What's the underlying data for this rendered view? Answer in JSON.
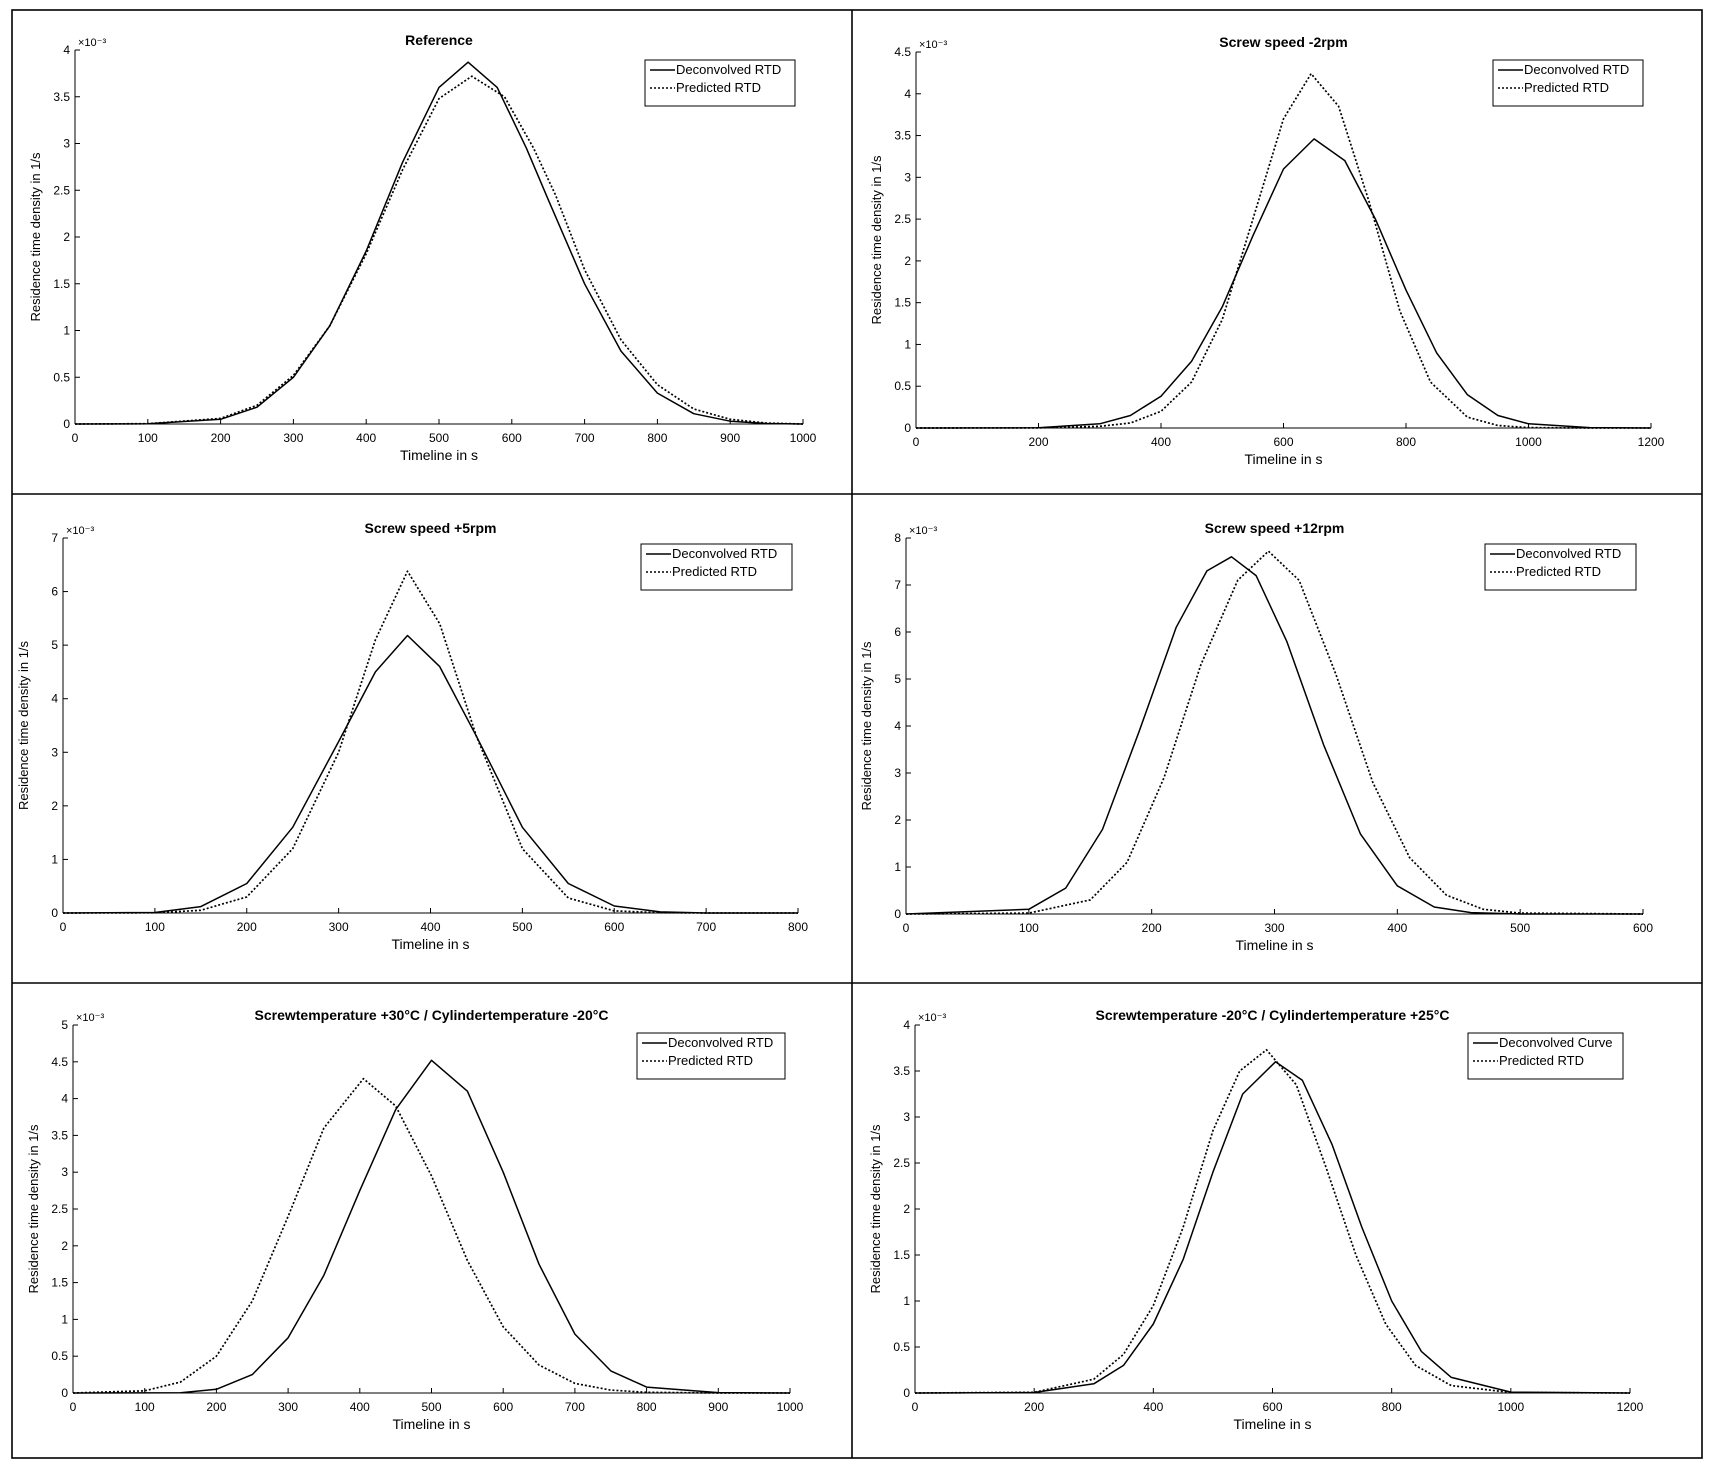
{
  "chart_data": [
    {
      "type": "line",
      "title": "Reference",
      "xlabel": "Timeline in s",
      "ylabel": "Residence time density in 1/s",
      "yscale_label": "×10⁻³",
      "xlim": [
        0,
        1000
      ],
      "ylim": [
        0,
        4
      ],
      "xticks": [
        0,
        100,
        200,
        300,
        400,
        500,
        600,
        700,
        800,
        900,
        1000
      ],
      "yticks": [
        0,
        0.5,
        1,
        1.5,
        2,
        2.5,
        3,
        3.5,
        4
      ],
      "legend_position": "top-right",
      "grid": false,
      "series": [
        {
          "name": "Deconvolved RTD",
          "style": "solid",
          "x": [
            0,
            100,
            200,
            250,
            300,
            350,
            400,
            450,
            500,
            540,
            580,
            620,
            650,
            700,
            750,
            800,
            850,
            900,
            950,
            1000
          ],
          "y": [
            0,
            0.002,
            0.05,
            0.18,
            0.5,
            1.05,
            1.85,
            2.8,
            3.6,
            3.87,
            3.6,
            2.95,
            2.4,
            1.5,
            0.78,
            0.33,
            0.11,
            0.03,
            0.005,
            0
          ]
        },
        {
          "name": "Predicted RTD",
          "style": "dotted",
          "x": [
            0,
            100,
            200,
            250,
            300,
            350,
            400,
            450,
            500,
            545,
            590,
            630,
            660,
            700,
            750,
            800,
            850,
            900,
            950,
            1000
          ],
          "y": [
            0,
            0.003,
            0.06,
            0.2,
            0.52,
            1.05,
            1.82,
            2.72,
            3.48,
            3.72,
            3.5,
            2.95,
            2.45,
            1.65,
            0.9,
            0.42,
            0.16,
            0.05,
            0.01,
            0
          ]
        }
      ]
    },
    {
      "type": "line",
      "title": "Screw speed -2rpm",
      "xlabel": "Timeline in s",
      "ylabel": "Residence time density in 1/s",
      "yscale_label": "×10⁻³",
      "xlim": [
        0,
        1200
      ],
      "ylim": [
        0,
        4.5
      ],
      "xticks": [
        0,
        200,
        400,
        600,
        800,
        1000,
        1200
      ],
      "yticks": [
        0,
        0.5,
        1,
        1.5,
        2,
        2.5,
        3,
        3.5,
        4,
        4.5
      ],
      "legend_position": "top-right",
      "grid": false,
      "series": [
        {
          "name": "Deconvolved RTD",
          "style": "solid",
          "x": [
            0,
            200,
            300,
            350,
            400,
            450,
            500,
            550,
            600,
            650,
            700,
            750,
            800,
            850,
            900,
            950,
            1000,
            1100,
            1200
          ],
          "y": [
            0,
            0.002,
            0.05,
            0.15,
            0.38,
            0.8,
            1.45,
            2.3,
            3.1,
            3.46,
            3.2,
            2.5,
            1.65,
            0.9,
            0.4,
            0.15,
            0.05,
            0.005,
            0
          ]
        },
        {
          "name": "Predicted RTD",
          "style": "dotted",
          "x": [
            0,
            200,
            300,
            350,
            400,
            450,
            500,
            550,
            600,
            645,
            690,
            740,
            790,
            840,
            900,
            950,
            1000,
            1100,
            1200
          ],
          "y": [
            0,
            0.001,
            0.02,
            0.06,
            0.2,
            0.55,
            1.3,
            2.5,
            3.7,
            4.24,
            3.85,
            2.7,
            1.4,
            0.55,
            0.13,
            0.03,
            0.005,
            0,
            0
          ]
        }
      ]
    },
    {
      "type": "line",
      "title": "Screw speed +5rpm",
      "xlabel": "Timeline in s",
      "ylabel": "Residence time density in 1/s",
      "yscale_label": "×10⁻³",
      "xlim": [
        0,
        800
      ],
      "ylim": [
        0,
        7
      ],
      "xticks": [
        0,
        100,
        200,
        300,
        400,
        500,
        600,
        700,
        800
      ],
      "yticks": [
        0,
        1,
        2,
        3,
        4,
        5,
        6,
        7
      ],
      "legend_position": "top-right",
      "grid": false,
      "series": [
        {
          "name": "Deconvolved RTD",
          "style": "solid",
          "x": [
            0,
            100,
            150,
            200,
            250,
            300,
            340,
            375,
            410,
            450,
            500,
            550,
            600,
            650,
            700,
            800
          ],
          "y": [
            0,
            0.01,
            0.12,
            0.55,
            1.6,
            3.2,
            4.5,
            5.18,
            4.6,
            3.3,
            1.6,
            0.55,
            0.13,
            0.02,
            0,
            0
          ]
        },
        {
          "name": "Predicted RTD",
          "style": "dotted",
          "x": [
            0,
            100,
            150,
            200,
            250,
            300,
            340,
            375,
            410,
            450,
            500,
            550,
            600,
            650,
            700,
            800
          ],
          "y": [
            0,
            0.003,
            0.05,
            0.3,
            1.2,
            3.0,
            5.1,
            6.38,
            5.4,
            3.3,
            1.2,
            0.28,
            0.04,
            0.005,
            0,
            0
          ]
        }
      ]
    },
    {
      "type": "line",
      "title": "Screw speed +12rpm",
      "xlabel": "Timeline in s",
      "ylabel": "Residence time density in 1/s",
      "yscale_label": "×10⁻³",
      "xlim": [
        0,
        600
      ],
      "ylim": [
        0,
        8
      ],
      "xticks": [
        0,
        100,
        200,
        300,
        400,
        500,
        600
      ],
      "yticks": [
        0,
        1,
        2,
        3,
        4,
        5,
        6,
        7,
        8
      ],
      "legend_position": "top-right",
      "grid": false,
      "series": [
        {
          "name": "Deconvolved RTD",
          "style": "solid",
          "x": [
            0,
            100,
            130,
            160,
            190,
            220,
            245,
            265,
            285,
            310,
            340,
            370,
            400,
            430,
            460,
            500,
            600
          ],
          "y": [
            0,
            0.1,
            0.55,
            1.8,
            3.9,
            6.1,
            7.3,
            7.6,
            7.2,
            5.8,
            3.6,
            1.7,
            0.6,
            0.15,
            0.03,
            0,
            0
          ]
        },
        {
          "name": "Predicted RTD",
          "style": "dotted",
          "x": [
            0,
            100,
            150,
            180,
            210,
            240,
            270,
            295,
            320,
            350,
            380,
            410,
            440,
            470,
            500,
            600
          ],
          "y": [
            0,
            0.02,
            0.3,
            1.1,
            2.9,
            5.3,
            7.1,
            7.72,
            7.1,
            5.1,
            2.8,
            1.2,
            0.4,
            0.1,
            0.02,
            0
          ]
        }
      ]
    },
    {
      "type": "line",
      "title": "Screwtemperature +30°C / Cylindertemperature -20°C",
      "xlabel": "Timeline in s",
      "ylabel": "Residence time density in 1/s",
      "yscale_label": "×10⁻³",
      "xlim": [
        0,
        1000
      ],
      "ylim": [
        0,
        5
      ],
      "xticks": [
        0,
        100,
        200,
        300,
        400,
        500,
        600,
        700,
        800,
        900,
        1000
      ],
      "yticks": [
        0,
        0.5,
        1,
        1.5,
        2,
        2.5,
        3,
        3.5,
        4,
        4.5,
        5
      ],
      "legend_position": "top-right",
      "grid": false,
      "series": [
        {
          "name": "Deconvolved RTD",
          "style": "solid",
          "x": [
            0,
            150,
            200,
            250,
            300,
            350,
            400,
            450,
            500,
            550,
            600,
            650,
            700,
            750,
            800,
            900,
            1000
          ],
          "y": [
            0,
            0.003,
            0.05,
            0.25,
            0.75,
            1.6,
            2.75,
            3.85,
            4.52,
            4.1,
            3.0,
            1.75,
            0.8,
            0.3,
            0.08,
            0.005,
            0
          ]
        },
        {
          "name": "Predicted RTD",
          "style": "dotted",
          "x": [
            0,
            100,
            150,
            200,
            250,
            300,
            350,
            405,
            450,
            500,
            550,
            600,
            650,
            700,
            750,
            800,
            900,
            1000
          ],
          "y": [
            0,
            0.03,
            0.15,
            0.5,
            1.25,
            2.4,
            3.6,
            4.27,
            3.9,
            2.95,
            1.8,
            0.9,
            0.38,
            0.13,
            0.04,
            0.01,
            0,
            0
          ]
        }
      ]
    },
    {
      "type": "line",
      "title": "Screwtemperature -20°C / Cylindertemperature +25°C",
      "xlabel": "Timeline in s",
      "ylabel": "Residence time density in 1/s",
      "yscale_label": "×10⁻³",
      "xlim": [
        0,
        1200
      ],
      "ylim": [
        0,
        4
      ],
      "xticks": [
        0,
        200,
        400,
        600,
        800,
        1000,
        1200
      ],
      "yticks": [
        0,
        0.5,
        1,
        1.5,
        2,
        2.5,
        3,
        3.5,
        4
      ],
      "legend_position": "top-right",
      "grid": false,
      "series": [
        {
          "name": "Deconvolved Curve",
          "style": "solid",
          "x": [
            0,
            200,
            300,
            350,
            400,
            450,
            500,
            550,
            605,
            650,
            700,
            750,
            800,
            850,
            900,
            1000,
            1200
          ],
          "y": [
            0,
            0.005,
            0.1,
            0.3,
            0.75,
            1.45,
            2.4,
            3.25,
            3.6,
            3.4,
            2.7,
            1.8,
            1.0,
            0.45,
            0.17,
            0.01,
            0
          ]
        },
        {
          "name": "Predicted RTD",
          "style": "dotted",
          "x": [
            0,
            200,
            300,
            350,
            400,
            450,
            500,
            545,
            590,
            640,
            690,
            740,
            790,
            840,
            900,
            1000,
            1200
          ],
          "y": [
            0,
            0.008,
            0.15,
            0.42,
            0.95,
            1.8,
            2.85,
            3.5,
            3.73,
            3.35,
            2.45,
            1.5,
            0.75,
            0.3,
            0.08,
            0.005,
            0
          ]
        }
      ]
    }
  ]
}
